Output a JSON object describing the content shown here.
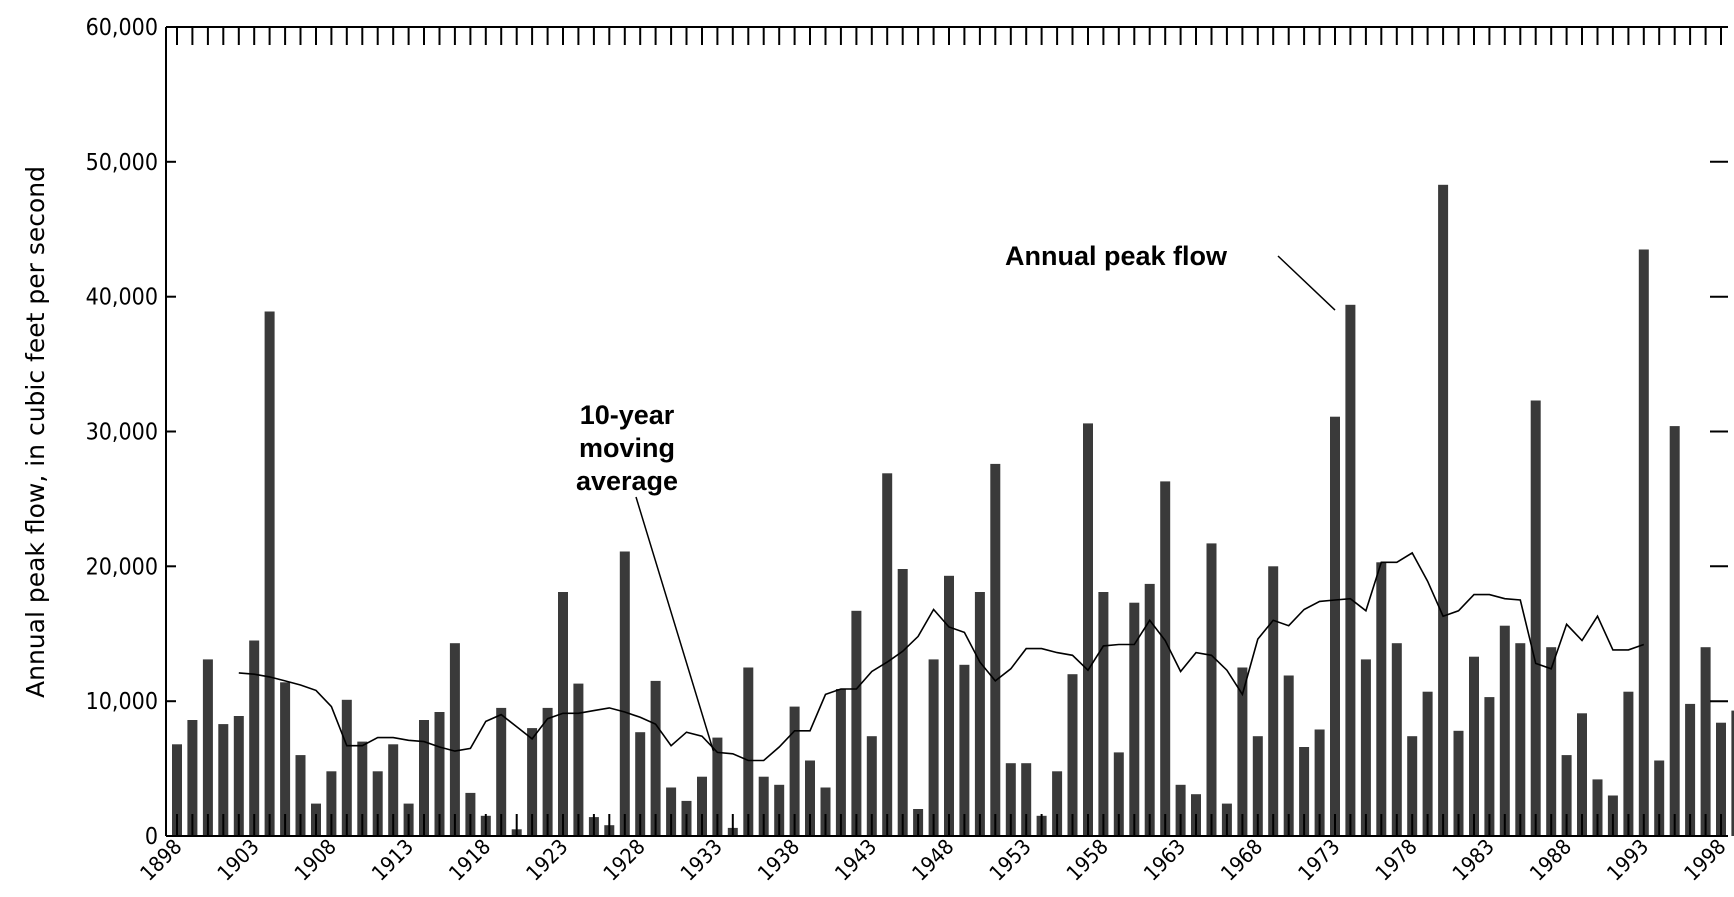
{
  "chart_data": {
    "type": "bar",
    "title": "",
    "xlabel": "",
    "ylabel": "Annual peak flow, in cubic feet per second",
    "ylim": [
      0,
      60000
    ],
    "xlim": [
      1898,
      1999
    ],
    "y_ticks": [
      0,
      10000,
      20000,
      30000,
      40000,
      50000,
      60000
    ],
    "y_tick_labels": [
      "0",
      "10,000",
      "20,000",
      "30,000",
      "40,000",
      "50,000",
      "60,000"
    ],
    "x_ticks": [
      1898,
      1903,
      1908,
      1913,
      1918,
      1923,
      1928,
      1933,
      1938,
      1943,
      1948,
      1953,
      1958,
      1963,
      1968,
      1973,
      1978,
      1983,
      1988,
      1993,
      1998
    ],
    "x_tick_labels": [
      "1898",
      "1903",
      "1908",
      "1913",
      "1918",
      "1923",
      "1928",
      "1933",
      "1938",
      "1943",
      "1948",
      "1953",
      "1958",
      "1963",
      "1968",
      "1973",
      "1978",
      "1983",
      "1988",
      "1993",
      "1998"
    ],
    "grid": false,
    "annotations": [
      {
        "text": "Annual peak flow",
        "points_to": {
          "x": 1973,
          "y": 39000
        }
      },
      {
        "text": "10-year\nmoving\naverage",
        "points_to": {
          "x": 1933,
          "y": 6000
        }
      }
    ],
    "series": [
      {
        "type": "bar",
        "years": [
          1898,
          1899,
          1900,
          1901,
          1902,
          1903,
          1904,
          1905,
          1906,
          1907,
          1908,
          1909,
          1910,
          1911,
          1912,
          1913,
          1914,
          1915,
          1916,
          1917,
          1918,
          1919,
          1920,
          1921,
          1922,
          1923,
          1924,
          1925,
          1926,
          1927,
          1928,
          1929,
          1930,
          1931,
          1932,
          1933,
          1934,
          1935,
          1936,
          1937,
          1938,
          1939,
          1940,
          1941,
          1942,
          1943,
          1944,
          1945,
          1946,
          1947,
          1948,
          1949,
          1950,
          1951,
          1952,
          1953,
          1954,
          1955,
          1956,
          1957,
          1958,
          1959,
          1960,
          1961,
          1962,
          1963,
          1964,
          1965,
          1966,
          1967,
          1968,
          1969,
          1970,
          1971,
          1972,
          1973,
          1974,
          1975,
          1976,
          1977,
          1978,
          1979,
          1980,
          1981,
          1982,
          1983,
          1984,
          1985,
          1986,
          1987,
          1988,
          1989,
          1990,
          1991,
          1992,
          1993,
          1994,
          1995,
          1996,
          1997,
          1998,
          1999
        ],
        "values": [
          6800,
          8600,
          13100,
          8300,
          8900,
          14500,
          38900,
          11400,
          6000,
          2400,
          4800,
          10100,
          7000,
          4800,
          6800,
          2400,
          8600,
          9200,
          14300,
          3200,
          1500,
          9500,
          500,
          8000,
          9500,
          18100,
          11300,
          1400,
          800,
          21100,
          7700,
          11500,
          3600,
          2600,
          4400,
          7300,
          600,
          12500,
          4400,
          3800,
          9600,
          5600,
          3600,
          10900,
          16700,
          7400,
          26900,
          19800,
          2000,
          13100,
          19300,
          12700,
          18100,
          27600,
          5400,
          5400,
          1500,
          4800,
          12000,
          30600,
          18100,
          6200,
          17300,
          18700,
          26300,
          3800,
          3100,
          21700,
          2400,
          12500,
          7400,
          20000,
          11900,
          6600,
          7900,
          31100,
          39400,
          13100,
          20300,
          14300,
          7400,
          10700,
          48300,
          7800,
          13300,
          10300,
          15600,
          14300,
          32300,
          14000,
          6000,
          9100,
          4200,
          3000,
          10700,
          43500,
          5600,
          30400,
          9800,
          14000,
          8400,
          9300
        ]
      },
      {
        "type": "line",
        "name": "10-year moving average",
        "years": [
          1902,
          1903,
          1904,
          1905,
          1906,
          1907,
          1908,
          1909,
          1910,
          1911,
          1912,
          1913,
          1914,
          1915,
          1916,
          1917,
          1918,
          1919,
          1920,
          1921,
          1922,
          1923,
          1924,
          1925,
          1926,
          1927,
          1928,
          1929,
          1930,
          1931,
          1932,
          1933,
          1934,
          1935,
          1936,
          1937,
          1938,
          1939,
          1940,
          1941,
          1942,
          1943,
          1944,
          1945,
          1946,
          1947,
          1948,
          1949,
          1950,
          1951,
          1952,
          1953,
          1954,
          1955,
          1956,
          1957,
          1958,
          1959,
          1960,
          1961,
          1962,
          1963,
          1964,
          1965,
          1966,
          1967,
          1968,
          1969,
          1970,
          1971,
          1972,
          1973,
          1974,
          1975,
          1976,
          1977,
          1978,
          1979,
          1980,
          1981,
          1982,
          1983,
          1984,
          1985,
          1986,
          1987,
          1988,
          1989,
          1990,
          1991,
          1992,
          1993
        ],
        "values": [
          12100,
          12000,
          11800,
          11500,
          11200,
          10800,
          9600,
          6700,
          6700,
          7300,
          7300,
          7100,
          7000,
          6600,
          6300,
          6500,
          8500,
          9000,
          8100,
          7200,
          8700,
          9100,
          9100,
          9300,
          9500,
          9200,
          8800,
          8300,
          6700,
          7700,
          7400,
          6200,
          6100,
          5600,
          5600,
          6600,
          7800,
          7800,
          10500,
          10900,
          10900,
          12200,
          12900,
          13700,
          14800,
          16800,
          15500,
          15100,
          12900,
          11500,
          12400,
          13900,
          13900,
          13600,
          13400,
          12300,
          14100,
          14200,
          14200,
          16000,
          14500,
          12200,
          13600,
          13400,
          12300,
          10500,
          14600,
          16000,
          15600,
          16800,
          17400,
          17500,
          17600,
          16700,
          20300,
          20300,
          21000,
          18900,
          16300,
          16700,
          17900,
          17900,
          17600,
          17500,
          12800,
          12400,
          15700,
          14500,
          16300,
          13800,
          13800,
          14200
        ]
      }
    ]
  }
}
